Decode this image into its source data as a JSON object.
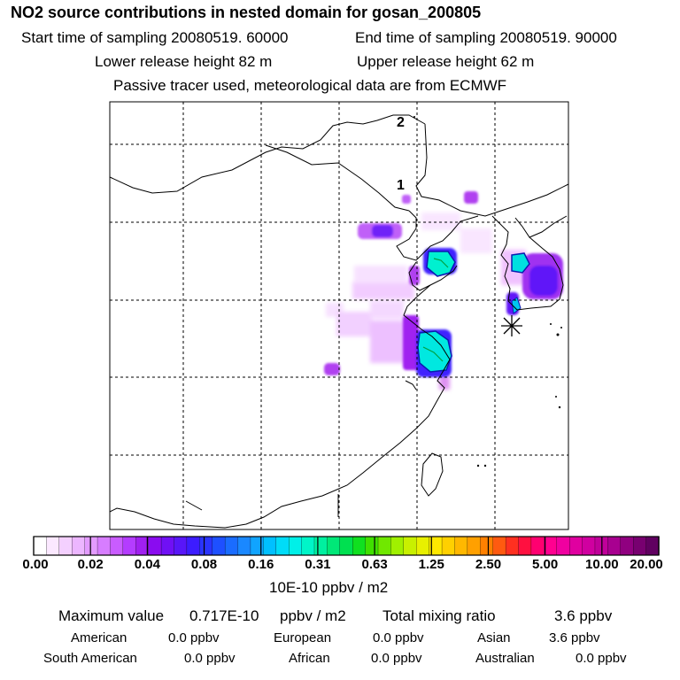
{
  "header": {
    "title": "NO2 source contributions in nested domain for gosan_200805",
    "start_time": "Start time of sampling 20080519. 60000",
    "end_time": "End time of sampling 20080519. 90000",
    "lower_release": "Lower release height   82 m",
    "upper_release": "Upper release height   62 m",
    "note": "Passive tracer used, meteorological data are from ECMWF"
  },
  "chart_data": {
    "type": "heatmap",
    "map_labels": [
      "1",
      "2"
    ],
    "receptor_marker": "asterisk",
    "colorbar": {
      "ticks": [
        "0.00",
        "0.02",
        "0.04",
        "0.08",
        "0.16",
        "0.31",
        "0.63",
        "1.25",
        "2.50",
        "5.00",
        "10.00",
        "20.00"
      ],
      "unit": "10E-10 ppbv / m2",
      "colors": [
        "#ffffff",
        "#fbe8ff",
        "#f4d0ff",
        "#ecb6ff",
        "#e39bff",
        "#d77dff",
        "#c95cff",
        "#b43cff",
        "#a020f0",
        "#8a0cf0",
        "#7010f5",
        "#5816f8",
        "#3c1cff",
        "#2a34ff",
        "#1e50ff",
        "#1a6cff",
        "#1a88ff",
        "#10a4ff",
        "#00c0ff",
        "#00dcf8",
        "#00f0e8",
        "#00f5c8",
        "#00f0a0",
        "#00e878",
        "#00e050",
        "#10e020",
        "#40e000",
        "#70e800",
        "#a0f000",
        "#c8f000",
        "#e8f000",
        "#ffe800",
        "#ffd000",
        "#ffb800",
        "#ffa000",
        "#ff8000",
        "#ff5a10",
        "#ff3020",
        "#ff1040",
        "#ff0070",
        "#ff0090",
        "#f000a0",
        "#e000a0",
        "#d000a0",
        "#c0009a",
        "#a80090",
        "#900080",
        "#780070",
        "#600060"
      ]
    },
    "max_value": "0.717E-10",
    "total_mixing_ratio": "3.6",
    "contributions": [
      {
        "region": "American",
        "value": 0.0
      },
      {
        "region": "European",
        "value": 0.0
      },
      {
        "region": "Asian",
        "value": 3.6
      },
      {
        "region": "South American",
        "value": 0.0
      },
      {
        "region": "African",
        "value": 0.0
      },
      {
        "region": "Australian",
        "value": 0.0
      }
    ]
  },
  "summary": {
    "max_label": "Maximum value",
    "max_value": "0.717E-10",
    "max_unit": "ppbv / m2",
    "total_label": "Total mixing ratio",
    "total_value": "3.6 ppbv",
    "american_label": "American",
    "american_value": "0.0 ppbv",
    "european_label": "European",
    "european_value": "0.0 ppbv",
    "asian_label": "Asian",
    "asian_value": "3.6 ppbv",
    "south_american_label": "South American",
    "south_american_value": "0.0 ppbv",
    "african_label": "African",
    "african_value": "0.0 ppbv",
    "australian_label": "Australian",
    "australian_value": "0.0 ppbv"
  }
}
